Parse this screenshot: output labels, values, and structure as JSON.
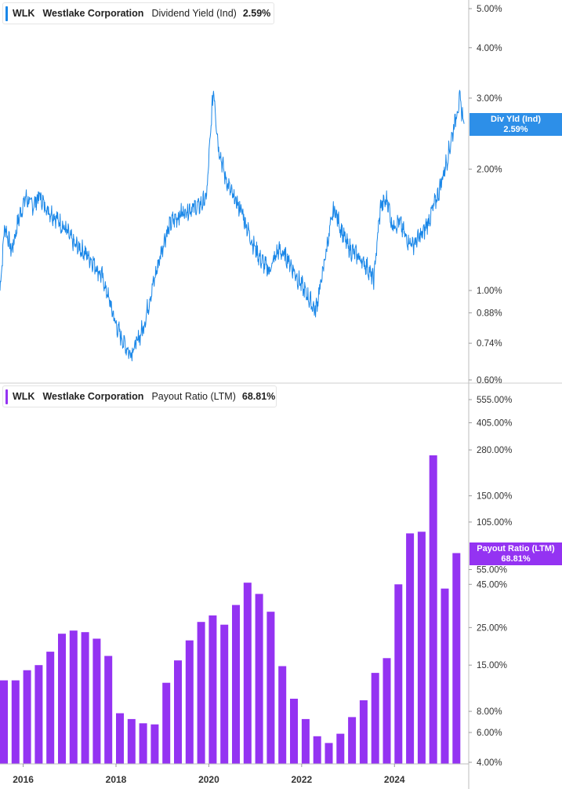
{
  "legend_top": {
    "ticker": "WLK",
    "company": "Westlake Corporation",
    "metric": "Dividend Yield (Ind)",
    "value": "2.59%",
    "color": "#1a87e8"
  },
  "legend_bottom": {
    "ticker": "WLK",
    "company": "Westlake Corporation",
    "metric": "Payout Ratio (LTM)",
    "value": "68.81%",
    "color": "#9433f2"
  },
  "tag_top": {
    "label": "Div Yld (Ind)",
    "value": "2.59%"
  },
  "tag_bottom": {
    "label": "Payout Ratio (LTM)",
    "value": "68.81%"
  },
  "chart_data": [
    {
      "type": "line",
      "scale": "log",
      "series": [
        {
          "name": "Dividend Yield (Ind)"
        }
      ],
      "yticks": [
        5.0,
        4.0,
        3.0,
        2.0,
        1.0,
        0.88,
        0.74,
        0.6
      ],
      "ytick_labels": [
        "5.00%",
        "4.00%",
        "3.00%",
        "2.00%",
        "1.00%",
        "0.88%",
        "0.74%",
        "0.60%"
      ],
      "ylim": [
        0.6,
        5.2
      ],
      "xlim": [
        2015.5,
        2025.6
      ],
      "color": "#1a87e8",
      "anchors": [
        [
          2015.5,
          1.0
        ],
        [
          2015.6,
          1.45
        ],
        [
          2015.75,
          1.25
        ],
        [
          2015.9,
          1.5
        ],
        [
          2016.05,
          1.7
        ],
        [
          2016.2,
          1.62
        ],
        [
          2016.35,
          1.72
        ],
        [
          2016.5,
          1.6
        ],
        [
          2016.7,
          1.52
        ],
        [
          2016.9,
          1.42
        ],
        [
          2017.1,
          1.3
        ],
        [
          2017.3,
          1.25
        ],
        [
          2017.5,
          1.18
        ],
        [
          2017.7,
          1.08
        ],
        [
          2017.85,
          0.95
        ],
        [
          2018.0,
          0.82
        ],
        [
          2018.15,
          0.75
        ],
        [
          2018.3,
          0.7
        ],
        [
          2018.45,
          0.74
        ],
        [
          2018.6,
          0.82
        ],
        [
          2018.75,
          0.98
        ],
        [
          2018.9,
          1.15
        ],
        [
          2019.05,
          1.35
        ],
        [
          2019.2,
          1.48
        ],
        [
          2019.4,
          1.55
        ],
        [
          2019.6,
          1.6
        ],
        [
          2019.8,
          1.62
        ],
        [
          2019.95,
          1.7
        ],
        [
          2020.1,
          3.2
        ],
        [
          2020.2,
          2.3
        ],
        [
          2020.35,
          1.92
        ],
        [
          2020.5,
          1.72
        ],
        [
          2020.7,
          1.58
        ],
        [
          2020.9,
          1.35
        ],
        [
          2021.1,
          1.2
        ],
        [
          2021.3,
          1.12
        ],
        [
          2021.5,
          1.26
        ],
        [
          2021.7,
          1.2
        ],
        [
          2021.9,
          1.08
        ],
        [
          2022.1,
          0.98
        ],
        [
          2022.3,
          0.89
        ],
        [
          2022.45,
          1.1
        ],
        [
          2022.55,
          1.3
        ],
        [
          2022.7,
          1.6
        ],
        [
          2022.85,
          1.42
        ],
        [
          2023.0,
          1.28
        ],
        [
          2023.2,
          1.22
        ],
        [
          2023.4,
          1.15
        ],
        [
          2023.55,
          1.06
        ],
        [
          2023.7,
          1.62
        ],
        [
          2023.85,
          1.68
        ],
        [
          2023.95,
          1.45
        ],
        [
          2024.1,
          1.48
        ],
        [
          2024.25,
          1.35
        ],
        [
          2024.4,
          1.3
        ],
        [
          2024.6,
          1.38
        ],
        [
          2024.75,
          1.5
        ],
        [
          2024.95,
          1.75
        ],
        [
          2025.15,
          2.15
        ],
        [
          2025.3,
          2.62
        ],
        [
          2025.4,
          2.98
        ],
        [
          2025.5,
          2.59
        ]
      ]
    },
    {
      "type": "bar",
      "scale": "log",
      "series": [
        {
          "name": "Payout Ratio (LTM)"
        }
      ],
      "yticks": [
        555,
        405,
        280,
        150,
        105,
        55,
        45,
        25,
        15,
        8,
        6,
        4
      ],
      "ytick_labels": [
        "555.00%",
        "405.00%",
        "280.00%",
        "150.00%",
        "105.00%",
        "55.00%",
        "45.00%",
        "25.00%",
        "15.00%",
        "8.00%",
        "6.00%",
        "4.00%"
      ],
      "ylim": [
        4.0,
        700
      ],
      "xlim": [
        2015.5,
        2025.6
      ],
      "color": "#9433f2",
      "xticks": [
        2016,
        2018,
        2020,
        2022,
        2024
      ],
      "xtick_labels": [
        "2016",
        "2018",
        "2020",
        "2022",
        "2024"
      ],
      "x": [
        2015.5,
        2015.75,
        2016.0,
        2016.25,
        2016.5,
        2016.75,
        2017.0,
        2017.25,
        2017.5,
        2017.75,
        2018.0,
        2018.25,
        2018.5,
        2018.75,
        2019.0,
        2019.25,
        2019.5,
        2019.75,
        2020.0,
        2020.25,
        2020.5,
        2020.75,
        2021.0,
        2021.25,
        2021.5,
        2021.75,
        2022.0,
        2022.25,
        2022.5,
        2022.75,
        2023.0,
        2023.25,
        2023.5,
        2023.75,
        2024.0,
        2024.25,
        2024.5,
        2024.75,
        2025.0,
        2025.25
      ],
      "values": [
        12.2,
        12.2,
        14.0,
        15.0,
        18.0,
        23.0,
        24.0,
        23.5,
        21.5,
        17.0,
        7.8,
        7.2,
        6.8,
        6.7,
        11.8,
        16.0,
        21.0,
        27.0,
        29.5,
        26.0,
        34.0,
        46.0,
        39.5,
        31.0,
        14.8,
        9.5,
        7.2,
        5.7,
        5.2,
        5.9,
        7.4,
        9.3,
        13.5,
        16.5,
        45.0,
        90.0,
        92.0,
        260.0,
        42.5,
        68.81
      ]
    }
  ]
}
